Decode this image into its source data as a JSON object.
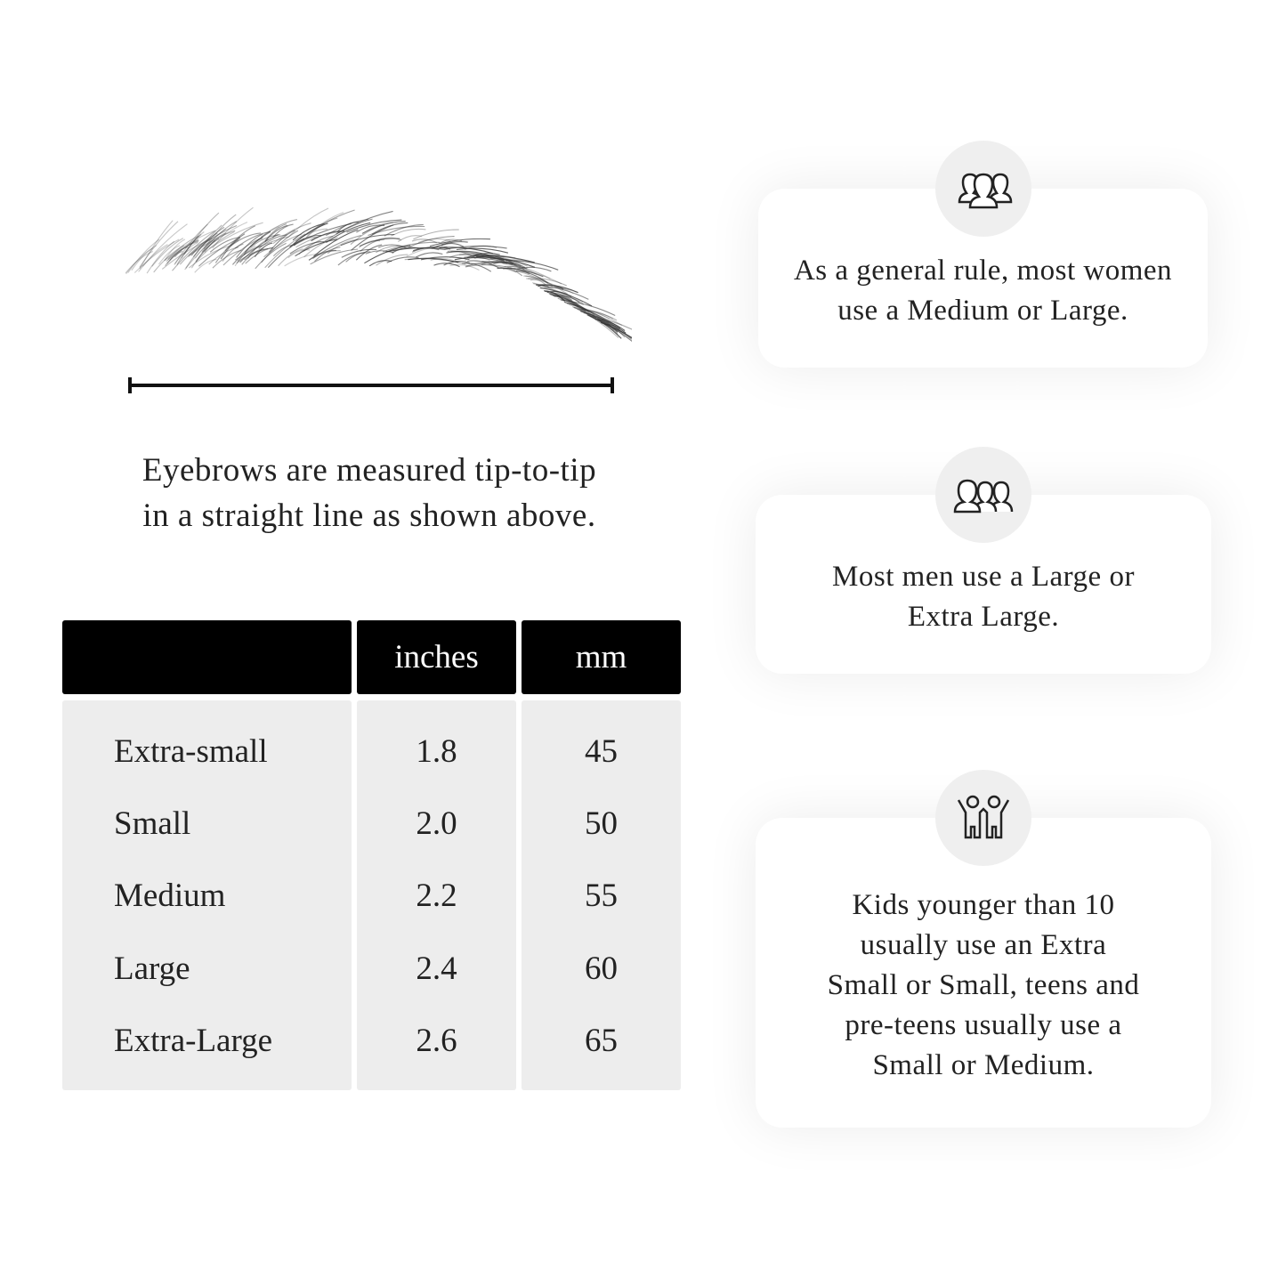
{
  "caption": {
    "line1": "Eyebrows are measured tip-to-tip",
    "line2": "in a straight line as shown above."
  },
  "table": {
    "headers": [
      "",
      "inches",
      "mm"
    ],
    "rows": [
      {
        "size": "Extra-small",
        "inches": "1.8",
        "mm": "45"
      },
      {
        "size": "Small",
        "inches": "2.0",
        "mm": "50"
      },
      {
        "size": "Medium",
        "inches": "2.2",
        "mm": "55"
      },
      {
        "size": "Large",
        "inches": "2.4",
        "mm": "60"
      },
      {
        "size": "Extra-Large",
        "inches": "2.6",
        "mm": "65"
      }
    ]
  },
  "cards": [
    {
      "icon": "women-group-icon",
      "lines": [
        "As a general rule, most women",
        "use a Medium or Large."
      ]
    },
    {
      "icon": "men-group-icon",
      "lines": [
        "Most men use a Large or",
        "Extra Large."
      ]
    },
    {
      "icon": "kids-icon",
      "lines": [
        "Kids younger than 10",
        "usually use an Extra",
        "Small or Small, teens and",
        "pre-teens usually use a",
        "Small or Medium."
      ]
    }
  ]
}
